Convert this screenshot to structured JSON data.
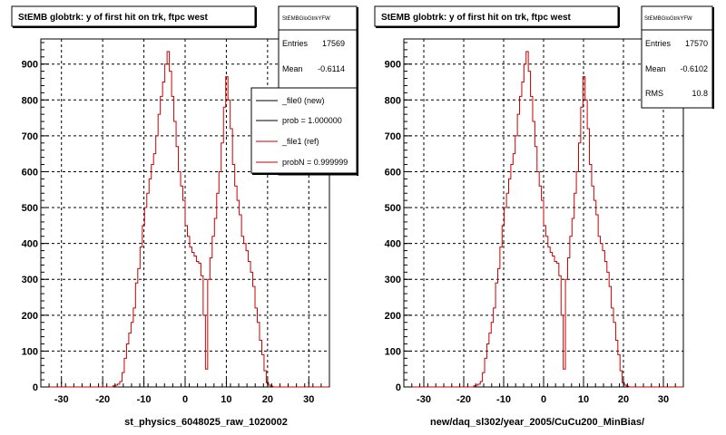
{
  "chart_data": [
    {
      "type": "histogram",
      "title": "StEMB globtrk: y of first hit on trk, ftpc west",
      "xlabel": "st_physics_6048025_raw_1020002",
      "ylabel": "",
      "xlim": [
        -35,
        35
      ],
      "ylim": [
        0,
        970
      ],
      "xticks": [
        -30,
        -20,
        -10,
        0,
        10,
        20,
        30
      ],
      "yticks": [
        0,
        100,
        200,
        300,
        400,
        500,
        600,
        700,
        800,
        900
      ],
      "grid": true,
      "stats": {
        "name": "StEMBGloGtrkYFW",
        "entries_label": "Entries",
        "entries": "17569",
        "mean_label": "Mean",
        "mean": "-0.6114"
      },
      "legend": {
        "placement": "top-right",
        "entries": [
          {
            "label": "_file0 (new)",
            "color": "#000000"
          },
          {
            "label": "prob = 1.000000",
            "color": "#000000"
          },
          {
            "label": "_file1 (ref)",
            "color": "#cc0000"
          },
          {
            "label": "probN = 0.999999",
            "color": "#cc0000"
          }
        ]
      },
      "series": [
        {
          "name": "_file1 (ref)",
          "color": "#cc0000",
          "values": [
            0,
            0,
            0,
            0,
            0,
            0,
            0,
            0,
            0,
            0,
            0,
            0,
            0,
            0,
            0,
            0,
            0,
            0,
            0,
            0,
            0,
            0,
            0,
            0,
            0,
            0,
            0,
            0,
            0,
            0,
            0,
            0,
            3,
            5,
            8,
            15,
            40,
            80,
            120,
            150,
            180,
            220,
            290,
            330,
            390,
            450,
            500,
            540,
            580,
            620,
            650,
            700,
            760,
            810,
            850,
            900,
            935,
            880,
            810,
            740,
            670,
            600,
            560,
            520,
            450,
            420,
            390,
            375,
            365,
            350,
            345,
            310,
            200,
            50,
            300,
            360,
            420,
            470,
            540,
            600,
            680,
            780,
            865,
            800,
            720,
            620,
            560,
            520,
            480,
            420,
            400,
            380,
            350,
            320,
            280,
            220,
            180,
            130,
            90,
            45,
            12,
            5,
            2,
            0,
            0,
            0,
            0,
            0,
            0,
            0,
            0,
            0,
            0,
            0,
            0,
            0,
            0,
            0,
            0,
            0,
            0,
            0,
            0,
            0,
            0,
            0,
            0,
            0
          ]
        }
      ]
    },
    {
      "type": "histogram",
      "title": "StEMB globtrk: y of first hit on trk, ftpc west",
      "xlabel": "new/daq_sl302/year_2005/CuCu200_MinBias/",
      "ylabel": "",
      "xlim": [
        -35,
        35
      ],
      "ylim": [
        0,
        970
      ],
      "xticks": [
        -30,
        -20,
        -10,
        0,
        10,
        20,
        30
      ],
      "yticks": [
        0,
        100,
        200,
        300,
        400,
        500,
        600,
        700,
        800,
        900
      ],
      "grid": true,
      "stats": {
        "name": "StEMBGloGtrkYFW",
        "entries_label": "Entries",
        "entries": "17570",
        "mean_label": "Mean",
        "mean": "-0.6102",
        "rms_label": "RMS",
        "rms": "10.8"
      },
      "series": [
        {
          "name": "",
          "color": "#cc0000",
          "values": [
            0,
            0,
            0,
            0,
            0,
            0,
            0,
            0,
            0,
            0,
            0,
            0,
            0,
            0,
            0,
            0,
            0,
            0,
            0,
            0,
            0,
            0,
            0,
            0,
            0,
            0,
            0,
            0,
            0,
            0,
            0,
            0,
            3,
            5,
            8,
            15,
            40,
            80,
            120,
            150,
            180,
            220,
            290,
            330,
            390,
            450,
            500,
            540,
            580,
            620,
            650,
            700,
            760,
            810,
            850,
            900,
            935,
            880,
            810,
            740,
            670,
            600,
            560,
            520,
            450,
            420,
            390,
            375,
            365,
            350,
            345,
            310,
            200,
            50,
            300,
            360,
            420,
            470,
            540,
            600,
            680,
            780,
            865,
            800,
            720,
            620,
            560,
            520,
            480,
            420,
            400,
            380,
            350,
            320,
            280,
            220,
            180,
            130,
            90,
            45,
            12,
            5,
            2,
            0,
            0,
            0,
            0,
            0,
            0,
            0,
            0,
            0,
            0,
            0,
            0,
            0,
            0,
            0,
            0,
            0,
            0,
            0,
            0,
            0,
            0,
            0,
            0,
            0
          ]
        }
      ]
    }
  ]
}
